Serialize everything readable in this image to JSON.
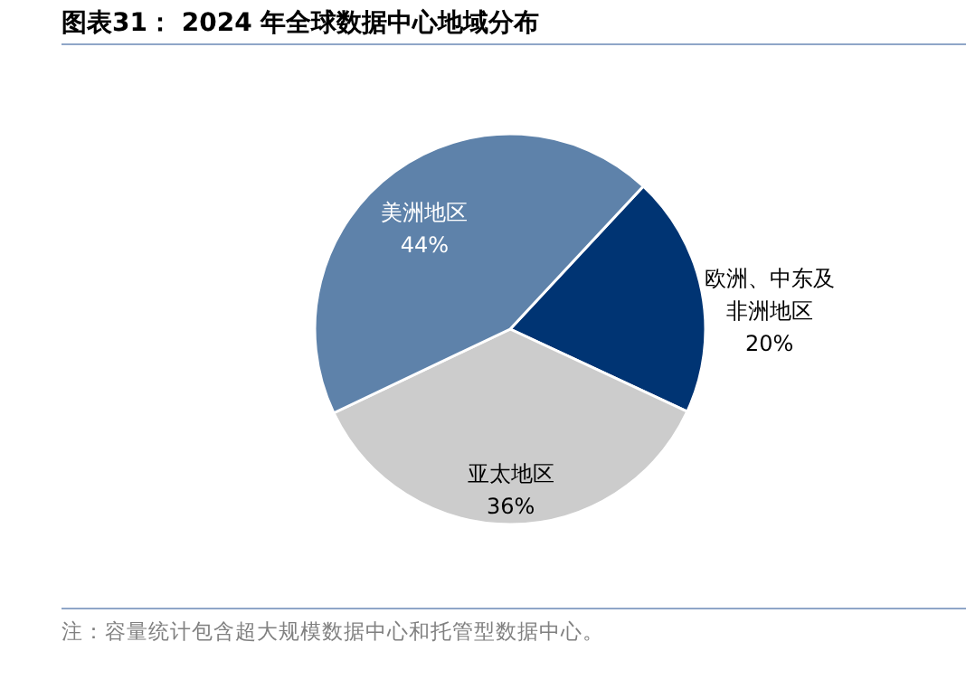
{
  "chart_data": {
    "type": "pie",
    "title": "图表31： 2024 年全球数据中心地域分布",
    "categories": [
      "欧洲、中东及非洲地区",
      "亚太地区",
      "美洲地区"
    ],
    "values": [
      20,
      36,
      44
    ],
    "colors": [
      "#003473",
      "#cccccc",
      "#5e82aa"
    ],
    "value_labels": [
      "20%",
      "36%",
      "44%"
    ],
    "annotations": [
      "注：容量统计包含超大规模数据中心和托管型数据中心。"
    ]
  }
}
